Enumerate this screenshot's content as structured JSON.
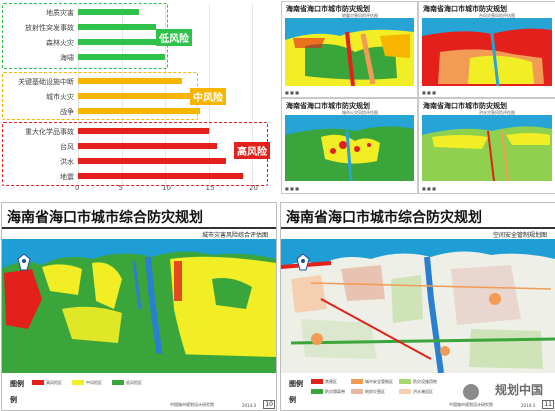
{
  "chart": {
    "groups": [
      {
        "name": "低风险",
        "color": "#2ec24a",
        "items": [
          {
            "label": "地质灾害",
            "value": 7
          },
          {
            "label": "放射性突发事故",
            "value": 9
          },
          {
            "label": "森林火灾",
            "value": 9.5
          },
          {
            "label": "海啸",
            "value": 10
          }
        ]
      },
      {
        "name": "中风险",
        "color": "#f7b500",
        "items": [
          {
            "label": "关键基础设施中断",
            "value": 12
          },
          {
            "label": "城市火灾",
            "value": 13
          },
          {
            "label": "战争",
            "value": 14
          }
        ]
      },
      {
        "name": "高风险",
        "color": "#e3201b",
        "items": [
          {
            "label": "重大化学品事故",
            "value": 15
          },
          {
            "label": "台风",
            "value": 16
          },
          {
            "label": "洪水",
            "value": 17
          },
          {
            "label": "地震",
            "value": 19
          }
        ]
      }
    ],
    "ticks": [
      "0",
      "5",
      "10",
      "15",
      "20"
    ],
    "xmax": 20
  },
  "cards": [
    {
      "title": "海南省海口市城市防灾规划",
      "sub": "地震灾害风险评估图"
    },
    {
      "title": "海南省海口市城市防灾规划",
      "sub": "台风灾害风险评估图"
    },
    {
      "title": "海南省海口市城市防灾规划",
      "sub": "城市火灾风险评估图"
    },
    {
      "title": "海南省海口市城市防灾规划",
      "sub": "洪水灾害风险评估图"
    }
  ],
  "slides": [
    {
      "title": "海南省海口市城市综合防灾规划",
      "sub": "城市灾害风险综合评估图",
      "legend_title": "图例",
      "legend": [
        {
          "label": "高风险区",
          "color": "#e3201b"
        },
        {
          "label": "中风险区",
          "color": "#f2ee26"
        },
        {
          "label": "低风险区",
          "color": "#3aa53a"
        }
      ],
      "footer": "中国城市规划设计研究院",
      "date": "2014.3",
      "page": "10"
    },
    {
      "title": "海南省海口市城市综合防灾规划",
      "sub": "空间安全管制规划图",
      "legend_title": "图例",
      "legend": [
        {
          "label": "禁建区",
          "color": "#e3201b"
        },
        {
          "label": "城市安全管制区",
          "color": "#f29b55"
        },
        {
          "label": "防灾设施用地",
          "color": "#a9d86e"
        },
        {
          "label": "防灾隔离带",
          "color": "#3aa53a"
        },
        {
          "label": "地质灾害区",
          "color": "#e6b8a2"
        },
        {
          "label": "洪水淹没区",
          "color": "#f5d0b0"
        }
      ],
      "footer": "中国城市规划设计研究院",
      "date": "2014.3",
      "page": "11"
    }
  ],
  "watermark": "规划中国"
}
